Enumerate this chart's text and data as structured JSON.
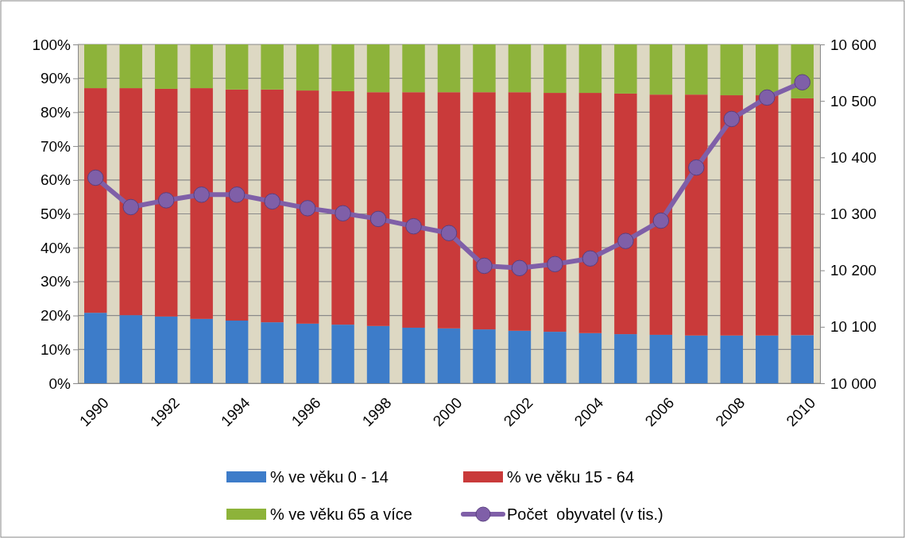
{
  "chart_data": {
    "type": "bar",
    "stacked": true,
    "grid": "y",
    "legend": "bottom",
    "categories": [
      "1990",
      null,
      "1992",
      null,
      "1994",
      null,
      "1996",
      null,
      "1998",
      null,
      "2000",
      null,
      "2002",
      null,
      "2004",
      null,
      "2006",
      null,
      "2008",
      null,
      "2010"
    ],
    "ylim": [
      0,
      100
    ],
    "yticks": [
      {
        "value": 0,
        "label": "0%"
      },
      {
        "value": 10,
        "label": "10%"
      },
      {
        "value": 20,
        "label": "20%"
      },
      {
        "value": 30,
        "label": "30%"
      },
      {
        "value": 40,
        "label": "40%"
      },
      {
        "value": 50,
        "label": "50%"
      },
      {
        "value": 60,
        "label": "60%"
      },
      {
        "value": 70,
        "label": "70%"
      },
      {
        "value": 80,
        "label": "80%"
      },
      {
        "value": 90,
        "label": "90%"
      },
      {
        "value": 100,
        "label": "100%"
      }
    ],
    "y2lim": [
      10000,
      10600
    ],
    "y2ticks": [
      {
        "value": 10000,
        "label": "10 000"
      },
      {
        "value": 10100,
        "label": "10 100"
      },
      {
        "value": 10200,
        "label": "10 200"
      },
      {
        "value": 10300,
        "label": "10 300"
      },
      {
        "value": 10400,
        "label": "10 400"
      },
      {
        "value": 10500,
        "label": "10 500"
      },
      {
        "value": 10600,
        "label": "10 600"
      }
    ],
    "series": [
      {
        "name": "% ve věku 0 - 14",
        "color": "#3d7cc9",
        "values": [
          20.8,
          20.1,
          19.7,
          19.0,
          18.5,
          18.0,
          17.6,
          17.3,
          16.9,
          16.4,
          16.2,
          15.9,
          15.5,
          15.2,
          14.8,
          14.5,
          14.3,
          14.1,
          14.1,
          14.1,
          14.2
        ]
      },
      {
        "name": "% ve věku 15 - 64",
        "color": "#c93a3a",
        "values": [
          66.3,
          67.0,
          67.2,
          68.1,
          68.2,
          68.7,
          68.8,
          68.9,
          69.0,
          69.5,
          69.7,
          70.0,
          70.4,
          70.5,
          70.9,
          71.0,
          70.9,
          71.1,
          70.9,
          70.9,
          69.9
        ]
      },
      {
        "name": "% ve věku 65 a více",
        "color": "#8db33a",
        "values": [
          12.9,
          12.9,
          13.1,
          12.9,
          13.3,
          13.3,
          13.6,
          13.8,
          14.1,
          14.1,
          14.1,
          14.1,
          14.1,
          14.3,
          14.3,
          14.5,
          14.8,
          14.8,
          15.0,
          15.0,
          15.9
        ]
      },
      {
        "name": "Počet  obyvatel (v tis.)",
        "type": "line",
        "axis": "y2",
        "marker": "circle",
        "color": "#7f5fa8",
        "values": [
          10364,
          10312,
          10324,
          10334,
          10334,
          10322,
          10310,
          10301,
          10291,
          10278,
          10266,
          10208,
          10204,
          10211,
          10221,
          10252,
          10288,
          10382,
          10468,
          10506,
          10533
        ]
      }
    ]
  }
}
